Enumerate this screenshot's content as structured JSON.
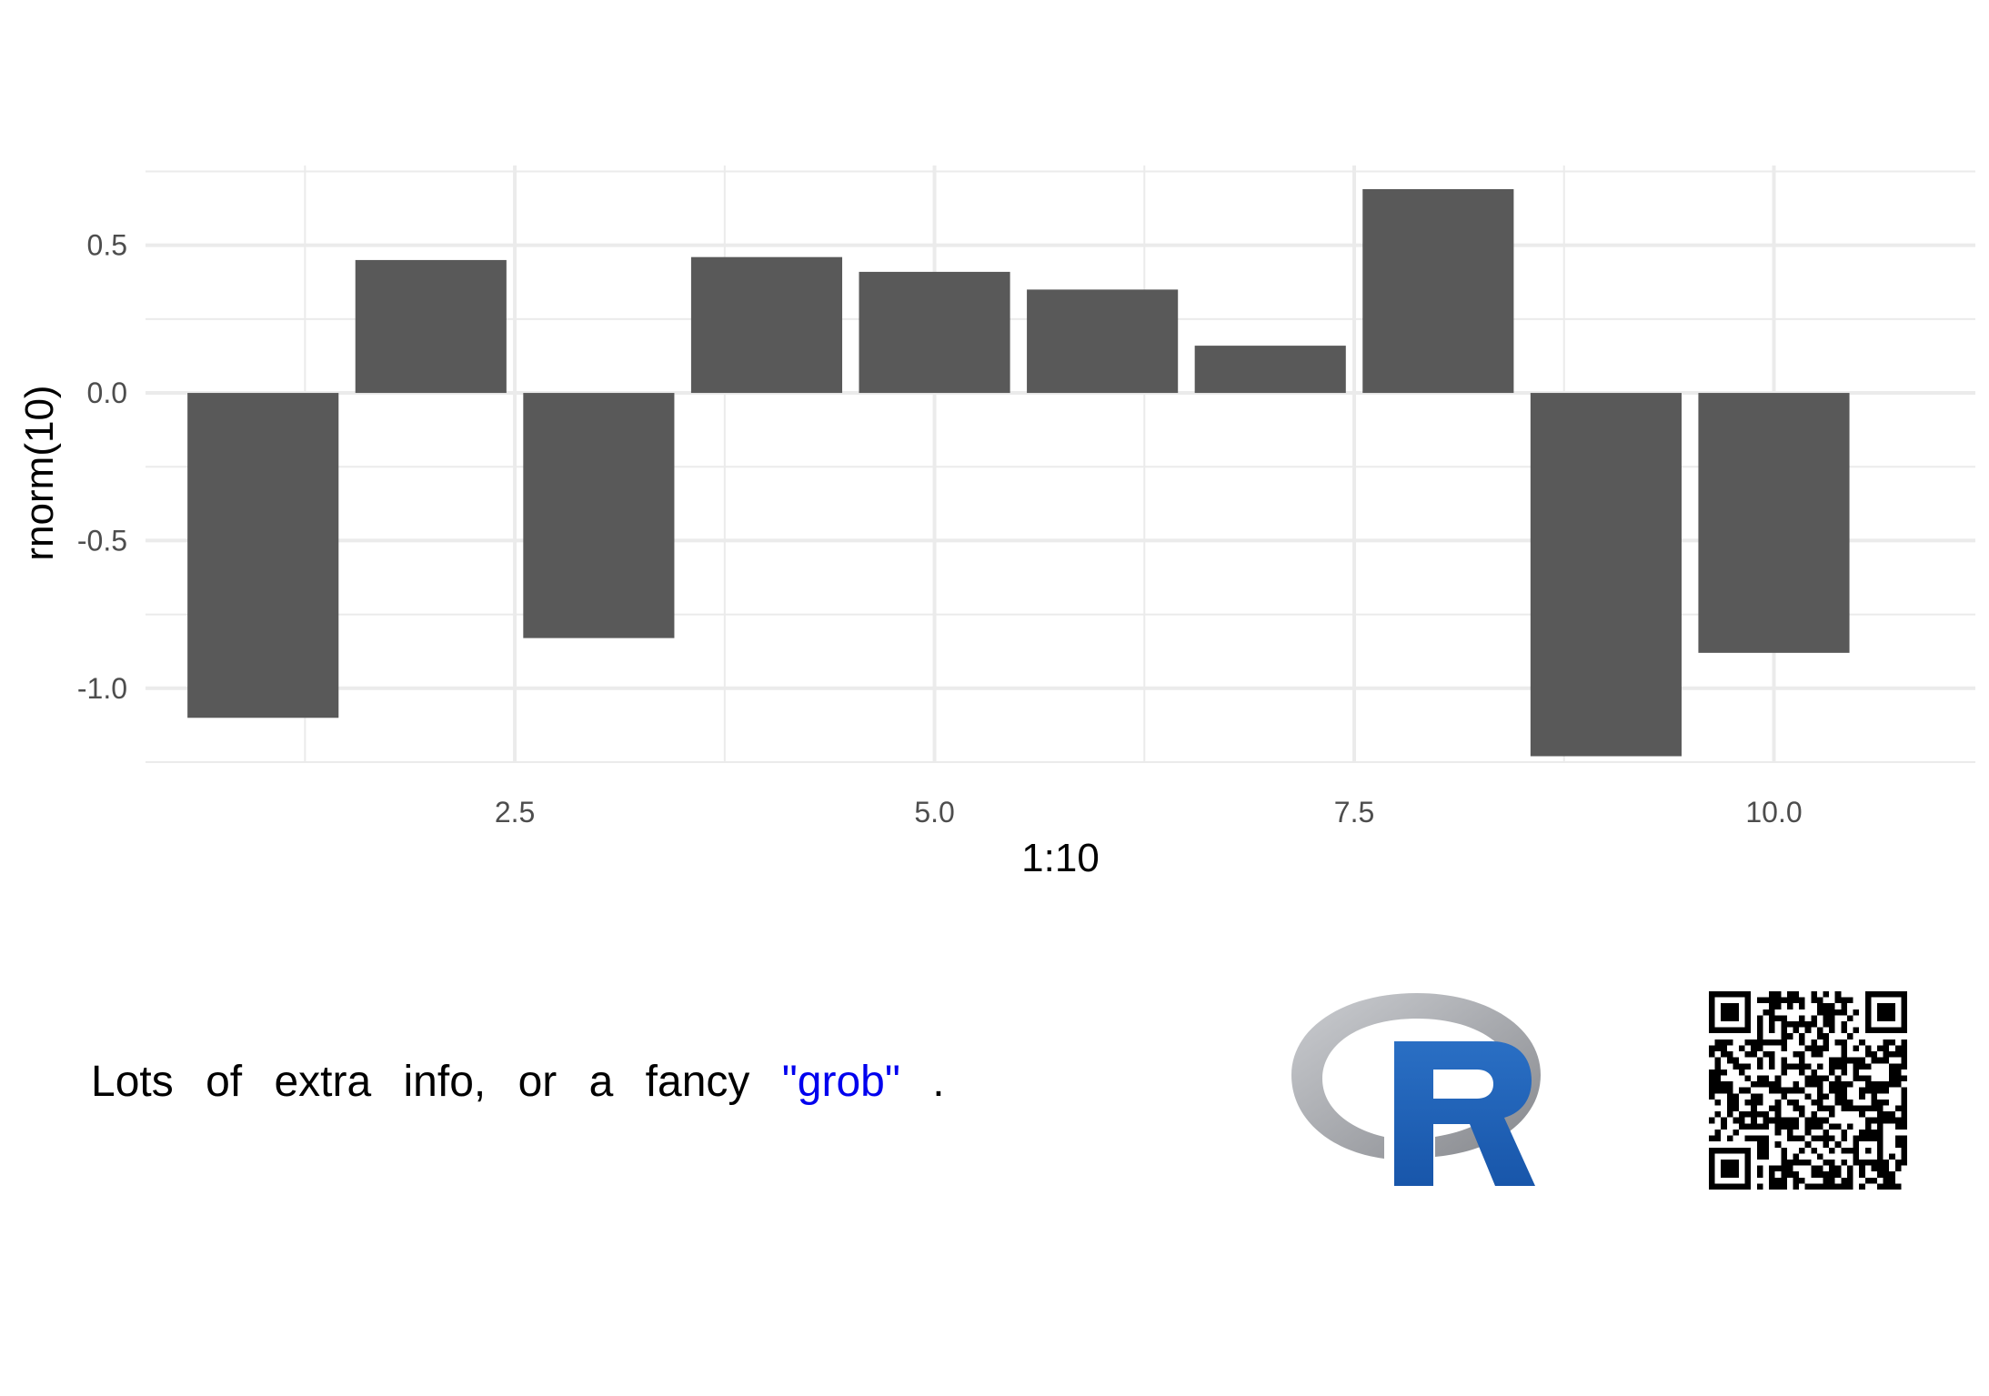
{
  "chart_data": {
    "type": "bar",
    "x": [
      1,
      2,
      3,
      4,
      5,
      6,
      7,
      8,
      9,
      10
    ],
    "values": [
      -1.1,
      0.45,
      -0.83,
      0.46,
      0.41,
      0.35,
      0.16,
      0.69,
      -1.23,
      -0.88
    ],
    "xlabel": "1:10",
    "ylabel": "rnorm(10)",
    "xlim": [
      0.3,
      11.2
    ],
    "ylim": [
      -1.25,
      0.77
    ],
    "x_ticks": [
      {
        "value": 2.5,
        "label": "2.5"
      },
      {
        "value": 5.0,
        "label": "5.0"
      },
      {
        "value": 7.5,
        "label": "7.5"
      },
      {
        "value": 10.0,
        "label": "10.0"
      }
    ],
    "y_ticks": [
      {
        "value": 0.5,
        "label": "0.5"
      },
      {
        "value": 0.0,
        "label": "0.0"
      },
      {
        "value": -0.5,
        "label": "-0.5"
      },
      {
        "value": -1.0,
        "label": "-1.0"
      }
    ],
    "grid": true,
    "bar_color": "#595959",
    "grid_color": "#ebebeb"
  },
  "caption": {
    "words": [
      "Lots",
      "of",
      "extra",
      "info,",
      "or",
      "a",
      "fancy"
    ],
    "highlight": "\"grob\"",
    "end": ".",
    "highlight_color": "#0000ee"
  },
  "logo": {
    "letter": "R",
    "icon": "r-logo-icon",
    "ring_color": "#a7a9ae",
    "letter_color": "#1e64b7"
  },
  "qr": {
    "icon": "qr-code-icon"
  }
}
